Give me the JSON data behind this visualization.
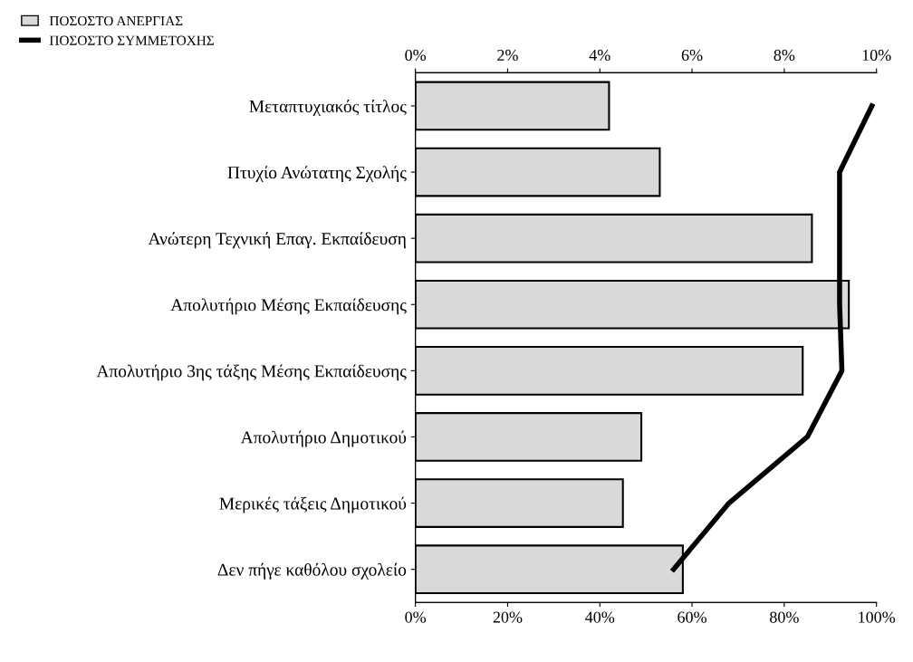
{
  "chart_data": {
    "type": "bar",
    "orientation": "horizontal",
    "categories": [
      "Μεταπτυχιακός τίτλος",
      "Πτυχίο Ανώτατης Σχολής",
      "Ανώτερη Τεχνική Επαγ. Εκπαίδευση",
      "Απολυτήριο Μέσης Εκπαίδευσης",
      "Απολυτήριο 3ης τάξης Μέσης Εκπαίδευσης",
      "Απολυτήριο Δημοτικού",
      "Μερικές τάξεις Δημοτικού",
      "Δεν πήγε καθόλου σχολείο"
    ],
    "series": [
      {
        "name": "ΠΟΣΟΣΤΟ ΑΝΕΡΓΙΑΣ",
        "axis": "x2",
        "color": "#d9d9d9",
        "values": [
          4.2,
          5.3,
          8.6,
          9.4,
          8.4,
          4.9,
          4.5,
          5.8
        ]
      },
      {
        "name": "ΠΟΣΟΣΤΟ ΣΥΜΜΕΤΟΧΗΣ",
        "type": "line",
        "color": "#000000",
        "values": [
          99,
          92,
          92,
          92,
          92.5,
          85,
          68,
          56
        ]
      }
    ],
    "xlim": [
      0,
      100
    ],
    "xticks": [
      {
        "value": 0,
        "label": "0%"
      },
      {
        "value": 20,
        "label": "20%"
      },
      {
        "value": 40,
        "label": "40%"
      },
      {
        "value": 60,
        "label": "60%"
      },
      {
        "value": 80,
        "label": "80%"
      },
      {
        "value": 100,
        "label": "100%"
      }
    ],
    "x2lim": [
      0,
      10
    ],
    "x2ticks": [
      {
        "value": 0,
        "label": "0%"
      },
      {
        "value": 2,
        "label": "2%"
      },
      {
        "value": 4,
        "label": "4%"
      },
      {
        "value": 6,
        "label": "6%"
      },
      {
        "value": 8,
        "label": "8%"
      },
      {
        "value": 10,
        "label": "10%"
      }
    ],
    "legend": "top left",
    "grid": false,
    "marker": "none",
    "line_style": "solid"
  }
}
